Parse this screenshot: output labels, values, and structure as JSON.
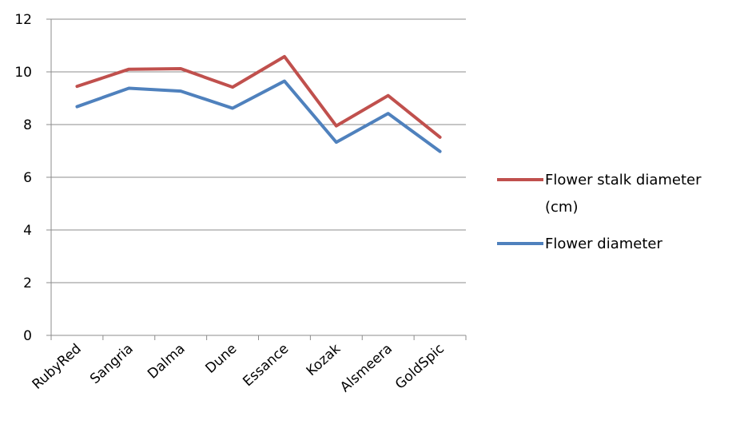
{
  "chart_data": {
    "type": "line",
    "categories": [
      "RubyRed",
      "Sangria",
      "Dalma",
      "Dune",
      "Essance",
      "Kozak",
      "Alsmeera",
      "GoldSpic"
    ],
    "series": [
      {
        "name": "Flower stalk diameter (cm)",
        "legend_lines": [
          "Flower stalk diameter",
          "(cm)"
        ],
        "color": "#c0504d",
        "values": [
          9.45,
          10.1,
          10.12,
          9.42,
          10.58,
          7.95,
          9.1,
          7.52
        ]
      },
      {
        "name": "Flower diameter",
        "legend_lines": [
          "Flower diameter"
        ],
        "color": "#4f81bd",
        "values": [
          8.68,
          9.38,
          9.27,
          8.62,
          9.65,
          7.33,
          8.42,
          6.98
        ]
      }
    ],
    "y_ticks": [
      "0",
      "2",
      "4",
      "6",
      "8",
      "10",
      "12"
    ],
    "ylim": [
      0,
      12
    ],
    "grid": true,
    "legend_position": "right"
  }
}
